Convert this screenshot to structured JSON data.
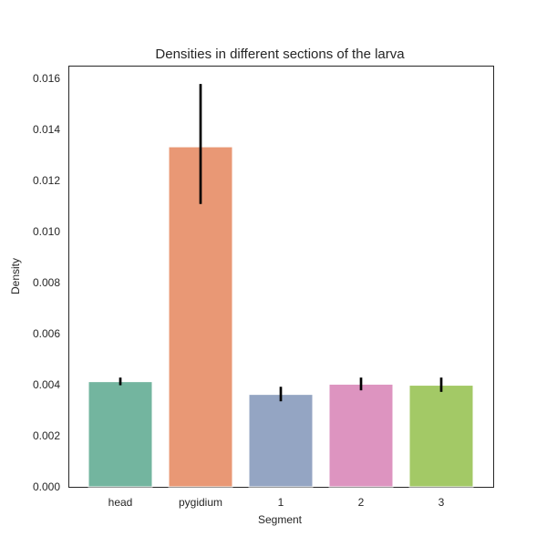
{
  "chart_data": {
    "type": "bar",
    "title": "Densities in different sections of the larva",
    "xlabel": "Segment",
    "ylabel": "Density",
    "categories": [
      "head",
      "pygidium",
      "1",
      "2",
      "3"
    ],
    "values": [
      0.00412,
      0.01332,
      0.00362,
      0.00402,
      0.00398
    ],
    "error_bars": [
      [
        0.00398,
        0.00428
      ],
      [
        0.01108,
        0.01578
      ],
      [
        0.00335,
        0.00392
      ],
      [
        0.00378,
        0.00428
      ],
      [
        0.00372,
        0.00428
      ]
    ],
    "colors": [
      "#73b59f",
      "#e99875",
      "#94a5c3",
      "#dd94c0",
      "#a3c966"
    ],
    "error_color": "#000000",
    "ylim": [
      0,
      0.0165
    ],
    "yticks": [
      "0.000",
      "0.002",
      "0.004",
      "0.006",
      "0.008",
      "0.010",
      "0.012",
      "0.014",
      "0.016"
    ],
    "ytick_values": [
      0,
      0.002,
      0.004,
      0.006,
      0.008,
      0.01,
      0.012,
      0.014,
      0.016
    ],
    "grid": false,
    "legend": "none"
  }
}
